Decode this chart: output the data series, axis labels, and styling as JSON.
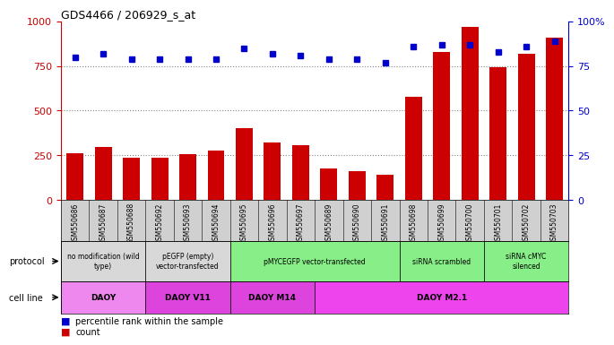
{
  "title": "GDS4466 / 206929_s_at",
  "samples": [
    "GSM550686",
    "GSM550687",
    "GSM550688",
    "GSM550692",
    "GSM550693",
    "GSM550694",
    "GSM550695",
    "GSM550696",
    "GSM550697",
    "GSM550689",
    "GSM550690",
    "GSM550691",
    "GSM550698",
    "GSM550699",
    "GSM550700",
    "GSM550701",
    "GSM550702",
    "GSM550703"
  ],
  "counts": [
    262,
    295,
    238,
    237,
    256,
    278,
    400,
    322,
    308,
    175,
    162,
    143,
    580,
    830,
    970,
    745,
    820,
    910
  ],
  "percentiles": [
    80,
    82,
    79,
    79,
    79,
    79,
    85,
    82,
    81,
    79,
    79,
    77,
    86,
    87,
    87,
    83,
    86,
    89
  ],
  "bar_color": "#cc0000",
  "dot_color": "#0000cc",
  "protocol_groups": [
    {
      "label": "no modification (wild\ntype)",
      "start": 0,
      "end": 3,
      "color": "#d8d8d8"
    },
    {
      "label": "pEGFP (empty)\nvector-transfected",
      "start": 3,
      "end": 6,
      "color": "#d8d8d8"
    },
    {
      "label": "pMYCEGFP vector-transfected",
      "start": 6,
      "end": 12,
      "color": "#88ee88"
    },
    {
      "label": "siRNA scrambled",
      "start": 12,
      "end": 15,
      "color": "#88ee88"
    },
    {
      "label": "siRNA cMYC\nsilenced",
      "start": 15,
      "end": 18,
      "color": "#88ee88"
    }
  ],
  "cellline_groups": [
    {
      "label": "DAOY",
      "start": 0,
      "end": 3,
      "color": "#ee88ee"
    },
    {
      "label": "DAOY V11",
      "start": 3,
      "end": 6,
      "color": "#dd44dd"
    },
    {
      "label": "DAOY M14",
      "start": 6,
      "end": 9,
      "color": "#dd44dd"
    },
    {
      "label": "DAOY M2.1",
      "start": 9,
      "end": 18,
      "color": "#ee44ee"
    }
  ],
  "ylim_left": [
    0,
    1000
  ],
  "ylim_right": [
    0,
    100
  ],
  "yticks_left": [
    0,
    250,
    500,
    750,
    1000
  ],
  "yticks_right": [
    0,
    25,
    50,
    75,
    100
  ],
  "grid_dotted_at": [
    250,
    500,
    750
  ],
  "xtick_bg": "#d0d0d0"
}
